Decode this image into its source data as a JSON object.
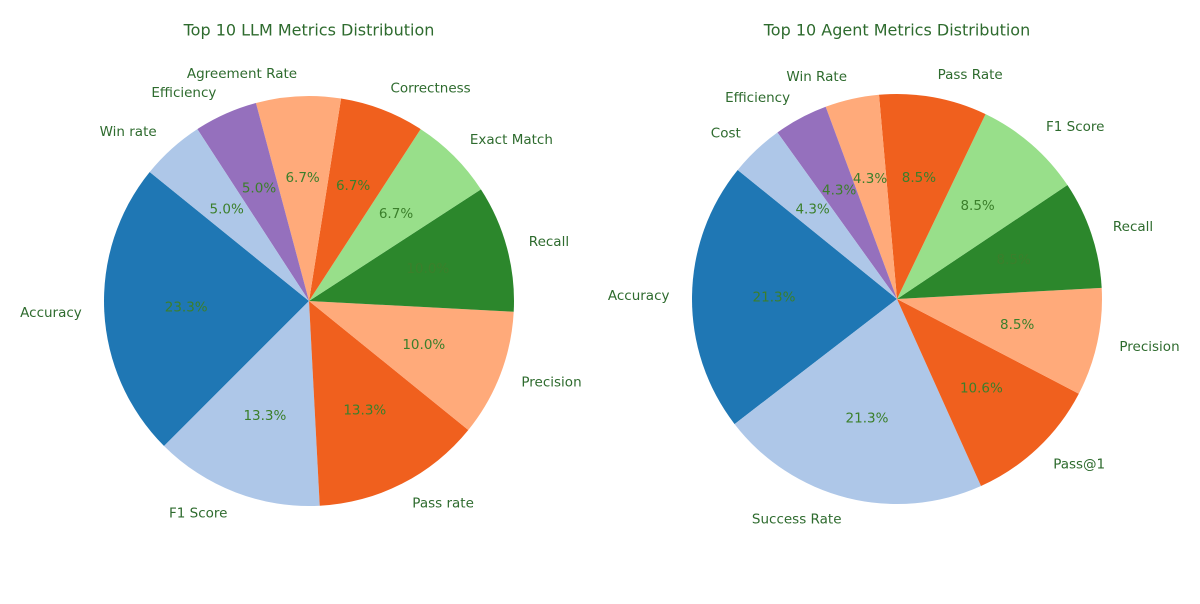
{
  "chart_data": [
    {
      "type": "pie",
      "title": "Top 10 LLM Metrics Distribution",
      "start_angle_deg": 141,
      "direction": "counterclockwise",
      "slices": [
        {
          "label": "Accuracy",
          "value": 14,
          "pct_label": "23.3%",
          "color": "#1f77b4"
        },
        {
          "label": "F1 Score",
          "value": 8,
          "pct_label": "13.3%",
          "color": "#aec7e8"
        },
        {
          "label": "Pass rate",
          "value": 8,
          "pct_label": "13.3%",
          "color": "#f0601e"
        },
        {
          "label": "Precision",
          "value": 6,
          "pct_label": "10.0%",
          "color": "#ffaa7a"
        },
        {
          "label": "Recall",
          "value": 6,
          "pct_label": "10.0%",
          "color": "#2c872c"
        },
        {
          "label": "Exact Match",
          "value": 4,
          "pct_label": "6.7%",
          "color": "#98df8a"
        },
        {
          "label": "Correctness",
          "value": 4,
          "pct_label": "6.7%",
          "color": "#f0601e"
        },
        {
          "label": "Agreement Rate",
          "value": 4,
          "pct_label": "6.7%",
          "color": "#ffaa7a"
        },
        {
          "label": "Efficiency",
          "value": 3,
          "pct_label": "5.0%",
          "color": "#9570bd"
        },
        {
          "label": "Win rate",
          "value": 3,
          "pct_label": "5.0%",
          "color": "#aec7e8"
        }
      ]
    },
    {
      "type": "pie",
      "title": "Top 10 Agent Metrics Distribution",
      "start_angle_deg": 141,
      "direction": "counterclockwise",
      "slices": [
        {
          "label": "Accuracy",
          "value": 10,
          "pct_label": "21.3%",
          "color": "#1f77b4"
        },
        {
          "label": "Success Rate",
          "value": 10,
          "pct_label": "21.3%",
          "color": "#aec7e8"
        },
        {
          "label": "Pass@1",
          "value": 5,
          "pct_label": "10.6%",
          "color": "#f0601e"
        },
        {
          "label": "Precision",
          "value": 4,
          "pct_label": "8.5%",
          "color": "#ffaa7a"
        },
        {
          "label": "Recall",
          "value": 4,
          "pct_label": "8.5%",
          "color": "#2c872c"
        },
        {
          "label": "F1 Score",
          "value": 4,
          "pct_label": "8.5%",
          "color": "#98df8a"
        },
        {
          "label": "Pass Rate",
          "value": 4,
          "pct_label": "8.5%",
          "color": "#f0601e"
        },
        {
          "label": "Win Rate",
          "value": 2,
          "pct_label": "4.3%",
          "color": "#ffaa7a"
        },
        {
          "label": "Efficiency",
          "value": 2,
          "pct_label": "4.3%",
          "color": "#9570bd"
        },
        {
          "label": "Cost",
          "value": 2,
          "pct_label": "4.3%",
          "color": "#aec7e8"
        }
      ]
    }
  ],
  "style": {
    "title_color": "#2e6b2e",
    "label_color": "#2e6b2e",
    "pct_color": "#3b7f2b"
  }
}
